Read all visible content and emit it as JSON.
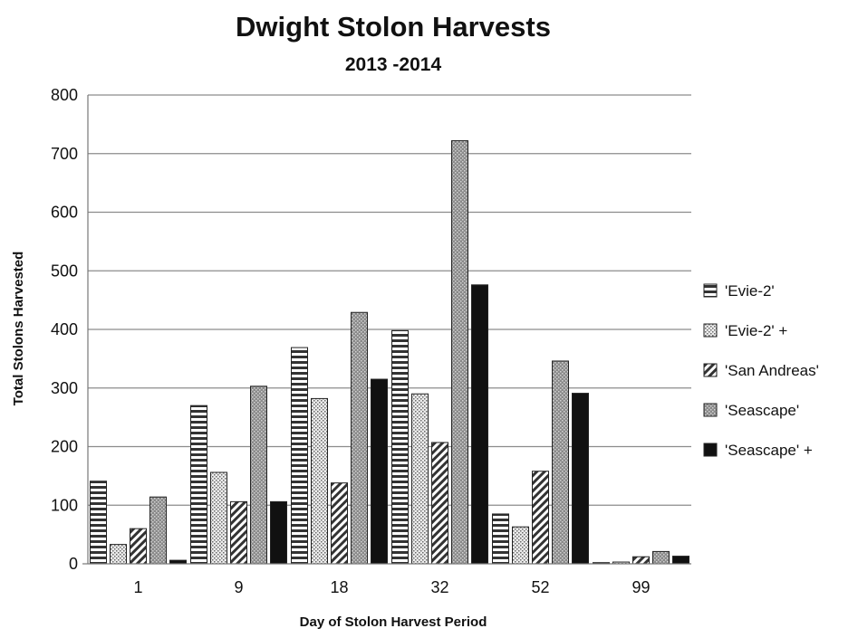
{
  "chart_data": {
    "type": "bar",
    "title": "Dwight Stolon Harvests",
    "subtitle": "2013 -2014",
    "xlabel": "Day of Stolon Harvest Period",
    "ylabel": "Total Stolons Harvested",
    "categories": [
      "1",
      "9",
      "18",
      "32",
      "52",
      "99"
    ],
    "ylim": [
      0,
      800
    ],
    "yticks": [
      "0",
      "100",
      "200",
      "300",
      "400",
      "500",
      "600",
      "700",
      "800"
    ],
    "grid": true,
    "legend_position": "right",
    "series": [
      {
        "name": "'Evie-2'",
        "pattern": "horizontal-stripes",
        "values": [
          141,
          270,
          369,
          398,
          85,
          2
        ]
      },
      {
        "name": "'Evie-2' +",
        "pattern": "light-dots",
        "values": [
          33,
          156,
          282,
          290,
          63,
          3
        ]
      },
      {
        "name": "'San Andreas'",
        "pattern": "diagonal-stripes",
        "values": [
          60,
          106,
          138,
          207,
          158,
          12
        ]
      },
      {
        "name": "'Seascape'",
        "pattern": "dark-dots",
        "values": [
          114,
          303,
          429,
          722,
          346,
          21
        ]
      },
      {
        "name": "'Seascape' +",
        "pattern": "solid-black",
        "values": [
          6,
          106,
          315,
          476,
          291,
          13
        ]
      }
    ]
  }
}
